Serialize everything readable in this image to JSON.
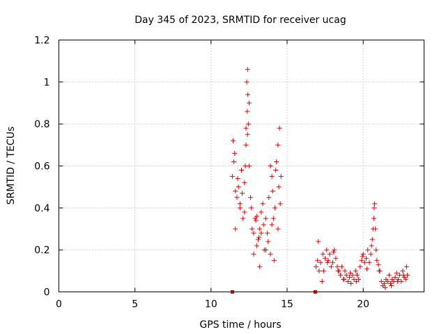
{
  "chart_data": {
    "type": "scatter",
    "title": "Day 345 of 2023, SRMTID for receiver ucag",
    "xlabel": "GPS time / hours",
    "ylabel": "SRMTID / TECUs",
    "xlim": [
      0,
      24
    ],
    "ylim": [
      0,
      1.2
    ],
    "xticks": [
      0,
      5,
      10,
      15,
      20
    ],
    "yticks": [
      0,
      0.2,
      0.4,
      0.6,
      0.8,
      1,
      1.2
    ],
    "ytick_labels": [
      "0",
      "0.2",
      "0.4",
      "0.6",
      "0.8",
      "1",
      "1.2"
    ],
    "grid": true,
    "marker": "+",
    "series": [
      {
        "name": "SRMTID",
        "color": "#e00000",
        "x": [
          11.4,
          11.5,
          11.6,
          11.7,
          11.8,
          11.9,
          12.0,
          12.1,
          12.2,
          12.3,
          12.4,
          12.45,
          12.5,
          12.6,
          12.7,
          12.8,
          12.9,
          13.0,
          13.1,
          13.2,
          13.3,
          13.4,
          13.5,
          13.6,
          13.7,
          13.8,
          13.9,
          14.0,
          14.1,
          14.2,
          14.3,
          14.4,
          14.5,
          14.6,
          12.35,
          12.4,
          12.42,
          12.38,
          12.3,
          12.5,
          11.6,
          11.9,
          12.2,
          12.8,
          13.2,
          13.6,
          14.0,
          14.4,
          11.45,
          11.55,
          11.75,
          12.05,
          12.25,
          12.65,
          12.95,
          13.15,
          13.45,
          13.75,
          14.05,
          14.25,
          14.45,
          14.55,
          13.0,
          13.3,
          13.9,
          14.15,
          16.9,
          17.0,
          17.1,
          17.2,
          17.3,
          17.4,
          17.5,
          17.6,
          17.7,
          17.8,
          17.9,
          18.0,
          18.1,
          18.2,
          18.3,
          18.4,
          18.5,
          18.6,
          18.7,
          18.8,
          18.9,
          19.0,
          19.1,
          19.2,
          19.3,
          19.4,
          19.5,
          19.6,
          19.7,
          19.8,
          19.9,
          20.0,
          20.1,
          20.2,
          20.3,
          20.4,
          20.5,
          20.6,
          20.7,
          20.75,
          20.8,
          20.85,
          20.9,
          21.0,
          21.1,
          21.2,
          21.3,
          21.4,
          21.5,
          21.6,
          21.7,
          21.8,
          21.9,
          22.0,
          22.1,
          22.2,
          22.3,
          22.4,
          22.5,
          22.6,
          22.7,
          22.8,
          22.9,
          17.05,
          17.35,
          17.65,
          18.05,
          18.35,
          18.75,
          19.15,
          19.55,
          19.95,
          20.25,
          20.55,
          20.65,
          20.72,
          21.05,
          21.45,
          21.85,
          22.25,
          22.65,
          22.85
        ],
        "y": [
          0.55,
          0.62,
          0.48,
          0.45,
          0.5,
          0.4,
          0.58,
          0.35,
          0.52,
          0.7,
          0.75,
          0.8,
          0.6,
          0.45,
          0.3,
          0.28,
          0.35,
          0.22,
          0.25,
          0.3,
          0.38,
          0.42,
          0.2,
          0.35,
          0.28,
          0.45,
          0.6,
          0.55,
          0.35,
          0.4,
          0.62,
          0.7,
          0.78,
          0.55,
          1.0,
          1.06,
          0.94,
          0.86,
          0.78,
          0.9,
          0.3,
          0.42,
          0.38,
          0.18,
          0.12,
          0.2,
          0.32,
          0.3,
          0.72,
          0.66,
          0.54,
          0.47,
          0.6,
          0.4,
          0.34,
          0.26,
          0.32,
          0.24,
          0.48,
          0.58,
          0.5,
          0.42,
          0.36,
          0.28,
          0.18,
          0.15,
          0.12,
          0.15,
          0.1,
          0.14,
          0.05,
          0.1,
          0.16,
          0.2,
          0.15,
          0.18,
          0.12,
          0.14,
          0.2,
          0.16,
          0.12,
          0.1,
          0.08,
          0.12,
          0.06,
          0.1,
          0.08,
          0.05,
          0.07,
          0.04,
          0.08,
          0.06,
          0.1,
          0.08,
          0.06,
          0.12,
          0.15,
          0.18,
          0.14,
          0.16,
          0.2,
          0.14,
          0.18,
          0.25,
          0.35,
          0.42,
          0.3,
          0.2,
          0.15,
          0.13,
          0.1,
          0.05,
          0.03,
          0.04,
          0.06,
          0.05,
          0.08,
          0.04,
          0.06,
          0.05,
          0.07,
          0.09,
          0.06,
          0.08,
          0.05,
          0.1,
          0.07,
          0.06,
          0.08,
          0.24,
          0.18,
          0.14,
          0.19,
          0.1,
          0.06,
          0.09,
          0.05,
          0.17,
          0.11,
          0.22,
          0.3,
          0.4,
          0.1,
          0.02,
          0.03,
          0.05,
          0.08,
          0.12
        ]
      }
    ],
    "squares": [
      {
        "x": 11.4,
        "y": 0
      },
      {
        "x": 16.85,
        "y": 0
      }
    ]
  }
}
